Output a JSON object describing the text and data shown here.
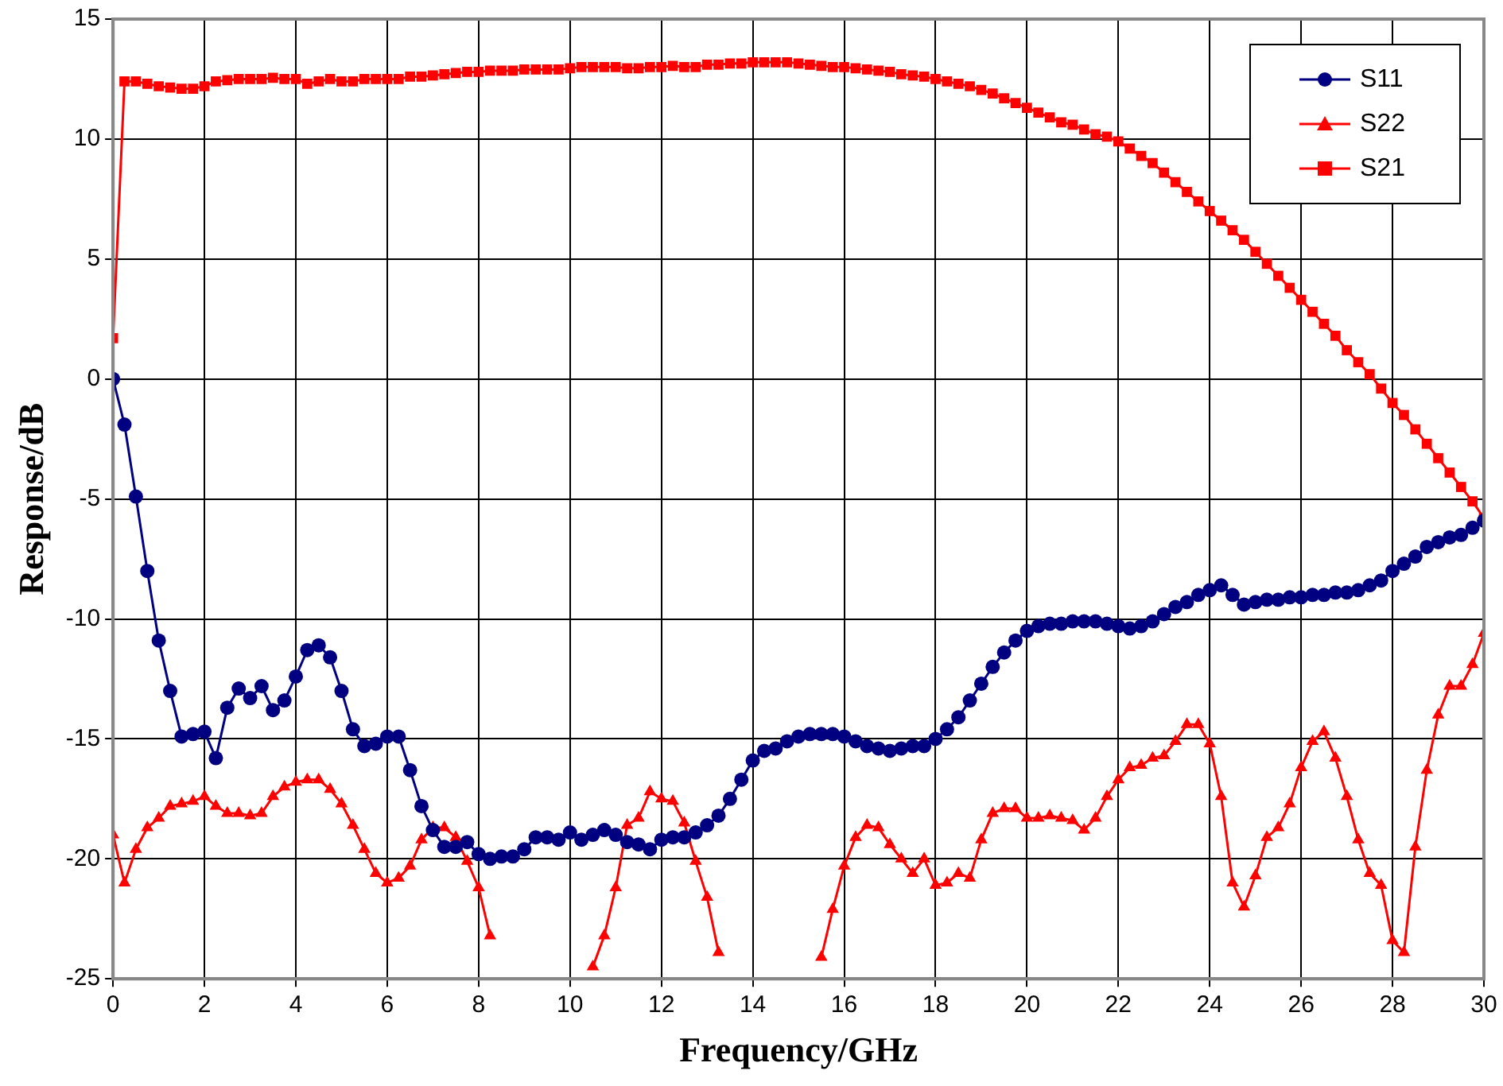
{
  "chart_data": {
    "type": "line",
    "xlabel": "Frequency/GHz",
    "ylabel": "Response/dB",
    "x": [
      0,
      0.25,
      0.5,
      0.75,
      1,
      1.25,
      1.5,
      1.75,
      2,
      2.25,
      2.5,
      2.75,
      3,
      3.25,
      3.5,
      3.75,
      4,
      4.25,
      4.5,
      4.75,
      5,
      5.25,
      5.5,
      5.75,
      6,
      6.25,
      6.5,
      6.75,
      7,
      7.25,
      7.5,
      7.75,
      8,
      8.25,
      8.5,
      8.75,
      9,
      9.25,
      9.5,
      9.75,
      10,
      10.25,
      10.5,
      10.75,
      11,
      11.25,
      11.5,
      11.75,
      12,
      12.25,
      12.5,
      12.75,
      13,
      13.25,
      13.5,
      13.75,
      14,
      14.25,
      14.5,
      14.75,
      15,
      15.25,
      15.5,
      15.75,
      16,
      16.25,
      16.5,
      16.75,
      17,
      17.25,
      17.5,
      17.75,
      18,
      18.25,
      18.5,
      18.75,
      19,
      19.25,
      19.5,
      19.75,
      20,
      20.25,
      20.5,
      20.75,
      21,
      21.25,
      21.5,
      21.75,
      22,
      22.25,
      22.5,
      22.75,
      23,
      23.25,
      23.5,
      23.75,
      24,
      24.25,
      24.5,
      24.75,
      25,
      25.25,
      25.5,
      25.75,
      26,
      26.25,
      26.5,
      26.75,
      27,
      27.25,
      27.5,
      27.75,
      28,
      28.25,
      28.5,
      28.75,
      29,
      29.25,
      29.5,
      29.75,
      30
    ],
    "series": [
      {
        "name": "S11",
        "color": "#000080",
        "marker": "circle",
        "values": [
          0,
          -1.9,
          -4.9,
          -8.0,
          -10.9,
          -13.0,
          -14.9,
          -14.8,
          -14.7,
          -15.8,
          -13.7,
          -12.9,
          -13.3,
          -12.8,
          -13.8,
          -13.4,
          -12.4,
          -11.3,
          -11.1,
          -11.6,
          -13.0,
          -14.6,
          -15.3,
          -15.2,
          -14.9,
          -14.9,
          -16.3,
          -17.8,
          -18.8,
          -19.5,
          -19.5,
          -19.3,
          -19.8,
          -20.0,
          -19.9,
          -19.9,
          -19.6,
          -19.1,
          -19.1,
          -19.2,
          -18.9,
          -19.2,
          -19.0,
          -18.8,
          -19.0,
          -19.3,
          -19.4,
          -19.6,
          -19.2,
          -19.1,
          -19.1,
          -18.9,
          -18.6,
          -18.2,
          -17.5,
          -16.7,
          -15.9,
          -15.5,
          -15.4,
          -15.1,
          -14.9,
          -14.8,
          -14.8,
          -14.8,
          -14.9,
          -15.1,
          -15.3,
          -15.4,
          -15.5,
          -15.4,
          -15.3,
          -15.3,
          -15.0,
          -14.6,
          -14.1,
          -13.4,
          -12.7,
          -12.0,
          -11.4,
          -10.9,
          -10.5,
          -10.3,
          -10.2,
          -10.2,
          -10.1,
          -10.1,
          -10.1,
          -10.2,
          -10.3,
          -10.4,
          -10.3,
          -10.1,
          -9.8,
          -9.5,
          -9.3,
          -9.0,
          -8.8,
          -8.6,
          -9.0,
          -9.4,
          -9.3,
          -9.2,
          -9.2,
          -9.1,
          -9.1,
          -9.0,
          -9.0,
          -8.9,
          -8.9,
          -8.8,
          -8.6,
          -8.4,
          -8.0,
          -7.7,
          -7.4,
          -7.0,
          -6.8,
          -6.6,
          -6.5,
          -6.2,
          -5.9
        ]
      },
      {
        "name": "S22",
        "color": "#ff0000",
        "marker": "triangle",
        "values": [
          -19.0,
          -21.0,
          -19.6,
          -18.7,
          -18.3,
          -17.8,
          -17.7,
          -17.6,
          -17.4,
          -17.8,
          -18.1,
          -18.1,
          -18.2,
          -18.1,
          -17.4,
          -17.0,
          -16.8,
          -16.7,
          -16.7,
          -17.1,
          -17.7,
          -18.6,
          -19.6,
          -20.6,
          -21.0,
          -20.8,
          -20.3,
          -19.2,
          -18.7,
          -18.7,
          -19.1,
          -20.1,
          -21.2,
          -23.2,
          null,
          null,
          null,
          null,
          null,
          null,
          null,
          null,
          -24.5,
          -23.2,
          -21.2,
          -18.6,
          -18.3,
          -17.2,
          -17.5,
          -17.6,
          -18.5,
          -20.1,
          -21.6,
          -23.9,
          null,
          null,
          null,
          null,
          null,
          null,
          null,
          null,
          -24.1,
          -22.1,
          -20.3,
          -19.1,
          -18.6,
          -18.7,
          -19.4,
          -20.0,
          -20.6,
          -20.0,
          -21.1,
          -21.0,
          -20.6,
          -20.8,
          -19.2,
          -18.1,
          -17.9,
          -17.9,
          -18.3,
          -18.3,
          -18.2,
          -18.3,
          -18.4,
          -18.8,
          -18.3,
          -17.4,
          -16.7,
          -16.2,
          -16.1,
          -15.8,
          -15.7,
          -15.1,
          -14.4,
          -14.4,
          -15.2,
          -17.4,
          -21.0,
          -22.0,
          -20.7,
          -19.1,
          -18.7,
          -17.7,
          -16.2,
          -15.1,
          -14.7,
          -15.8,
          -17.4,
          -19.2,
          -20.6,
          -21.1,
          -23.4,
          -23.9,
          -19.5,
          -16.3,
          -14.0,
          -12.8,
          -12.8,
          -11.9,
          -10.6
        ]
      },
      {
        "name": "S21",
        "color": "#ff0000",
        "marker": "square",
        "values": [
          1.7,
          12.4,
          12.4,
          12.3,
          12.2,
          12.15,
          12.1,
          12.1,
          12.2,
          12.4,
          12.45,
          12.5,
          12.5,
          12.5,
          12.55,
          12.5,
          12.5,
          12.3,
          12.4,
          12.5,
          12.4,
          12.4,
          12.5,
          12.5,
          12.5,
          12.5,
          12.6,
          12.6,
          12.65,
          12.7,
          12.75,
          12.8,
          12.8,
          12.85,
          12.85,
          12.85,
          12.9,
          12.9,
          12.9,
          12.9,
          12.95,
          13.0,
          13.0,
          13.0,
          13.0,
          12.95,
          12.95,
          13.0,
          13.0,
          13.05,
          13.0,
          13.0,
          13.1,
          13.1,
          13.15,
          13.15,
          13.2,
          13.2,
          13.2,
          13.2,
          13.15,
          13.1,
          13.05,
          13.0,
          13.0,
          12.95,
          12.9,
          12.85,
          12.8,
          12.7,
          12.65,
          12.6,
          12.5,
          12.4,
          12.3,
          12.2,
          12.05,
          11.9,
          11.7,
          11.5,
          11.3,
          11.1,
          10.9,
          10.7,
          10.6,
          10.4,
          10.2,
          10.1,
          9.9,
          9.6,
          9.3,
          9.0,
          8.6,
          8.2,
          7.8,
          7.4,
          7.0,
          6.6,
          6.2,
          5.8,
          5.3,
          4.8,
          4.3,
          3.8,
          3.3,
          2.8,
          2.3,
          1.8,
          1.2,
          0.7,
          0.2,
          -0.4,
          -1.0,
          -1.5,
          -2.1,
          -2.7,
          -3.3,
          -3.9,
          -4.5,
          -5.1,
          -5.8
        ]
      }
    ],
    "xlim": [
      0,
      30
    ],
    "xticks": [
      0,
      2,
      4,
      6,
      8,
      10,
      12,
      14,
      16,
      18,
      20,
      22,
      24,
      26,
      28,
      30
    ],
    "ylim": [
      -25,
      15
    ],
    "yticks": [
      -25,
      -20,
      -15,
      -10,
      -5,
      0,
      5,
      10,
      15
    ],
    "grid": true,
    "legend": "top right"
  }
}
